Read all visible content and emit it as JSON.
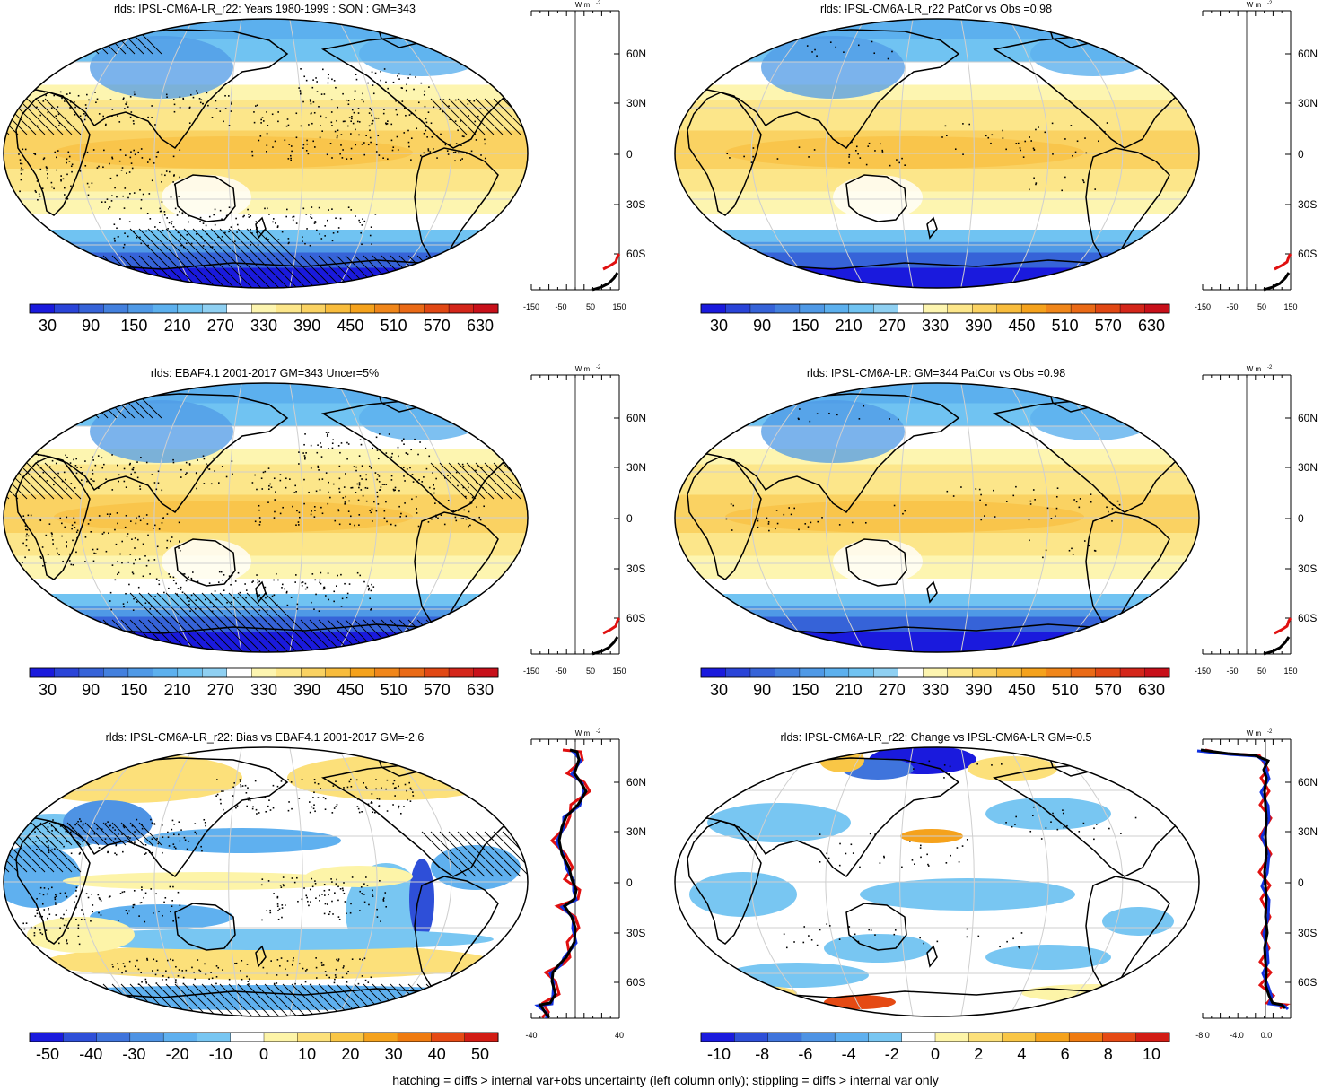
{
  "colors": {
    "div": [
      "#1a1add",
      "#2e4fd8",
      "#3f74dc",
      "#4e93e4",
      "#5fb0ef",
      "#78c6f2",
      "#ffffff",
      "#fdf4a8",
      "#fce07a",
      "#f9c646",
      "#f5a21c",
      "#ef7b10",
      "#e54a14",
      "#d21c14"
    ],
    "seq": [
      "#1a1add",
      "#2a44d8",
      "#3663d8",
      "#4380de",
      "#4f99e6",
      "#5cb0ee",
      "#70c3f2",
      "#8fd0f2",
      "#ffffff",
      "#fdf5b0",
      "#fce68a",
      "#fad262",
      "#f8bc3c",
      "#f5a21c",
      "#f0861a",
      "#ea6a16",
      "#e14814",
      "#d4261a",
      "#c8101a"
    ]
  },
  "panels": [
    {
      "title": "rlds: IPSL-CM6A-LR_r22: Years 1980-1999 : SON : GM=343",
      "cbar_labels": [
        "30",
        "90",
        "150",
        "210",
        "270",
        "330",
        "390",
        "450",
        "510",
        "570",
        "630"
      ],
      "profile_xticks": [
        "-150",
        "-50",
        "50",
        "150"
      ],
      "profile_unit": "W m",
      "profile_unit_sup": "-2",
      "kind": "clim"
    },
    {
      "title": "rlds: IPSL-CM6A-LR_r22 PatCor vs Obs =0.98",
      "cbar_labels": [
        "30",
        "90",
        "150",
        "210",
        "270",
        "330",
        "390",
        "450",
        "510",
        "570",
        "630"
      ],
      "profile_xticks": [
        "-150",
        "-50",
        "50",
        "150"
      ],
      "profile_unit": "W m",
      "profile_unit_sup": "-2",
      "kind": "clim"
    },
    {
      "title": "rlds: EBAF4.1 2001-2017 GM=343 Uncer=5%",
      "cbar_labels": [
        "30",
        "90",
        "150",
        "210",
        "270",
        "330",
        "390",
        "450",
        "510",
        "570",
        "630"
      ],
      "profile_xticks": [
        "-150",
        "-50",
        "50",
        "150"
      ],
      "profile_unit": "W m",
      "profile_unit_sup": "-2",
      "kind": "clim"
    },
    {
      "title": "rlds: IPSL-CM6A-LR: GM=344 PatCor vs Obs =0.98",
      "cbar_labels": [
        "30",
        "90",
        "150",
        "210",
        "270",
        "330",
        "390",
        "450",
        "510",
        "570",
        "630"
      ],
      "profile_xticks": [
        "-150",
        "-50",
        "50",
        "150"
      ],
      "profile_unit": "W m",
      "profile_unit_sup": "-2",
      "kind": "clim"
    },
    {
      "title": "rlds: IPSL-CM6A-LR_r22: Bias vs EBAF4.1 2001-2017  GM=-2.6",
      "cbar_labels": [
        "-50",
        "-40",
        "-30",
        "-20",
        "-10",
        "0",
        "10",
        "20",
        "30",
        "40",
        "50"
      ],
      "profile_xticks": [
        "-40",
        "40"
      ],
      "profile_unit": "W m",
      "profile_unit_sup": "-2",
      "kind": "bias"
    },
    {
      "title": "rlds: IPSL-CM6A-LR_r22: Change vs IPSL-CM6A-LR GM=-0.5",
      "cbar_labels": [
        "-10",
        "-8",
        "-6",
        "-4",
        "-2",
        "0",
        "2",
        "4",
        "6",
        "8",
        "10"
      ],
      "profile_xticks": [
        "-8.0",
        "-4.0",
        "0.0"
      ],
      "profile_unit": "W m",
      "profile_unit_sup": "-2",
      "kind": "change"
    }
  ],
  "lat_labels": [
    "60N",
    "30N",
    "0",
    "30S",
    "60S"
  ],
  "footnote": "hatching = diffs > internal var+obs uncertainty (left column only); stippling = diffs > internal var only"
}
